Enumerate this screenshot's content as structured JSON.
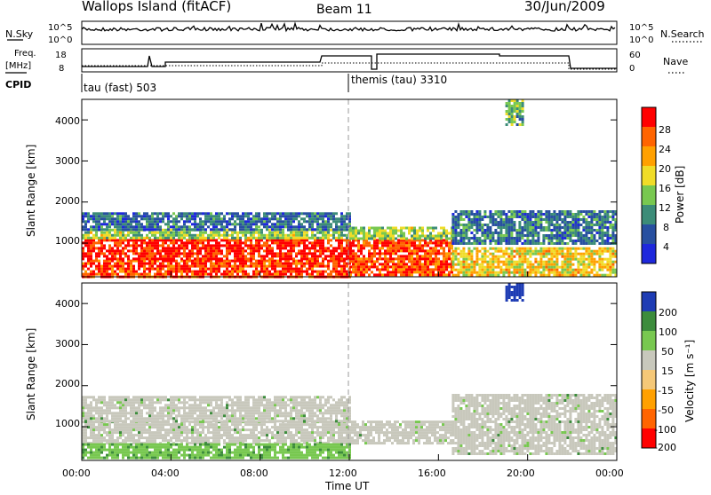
{
  "header": {
    "station": "Wallops Island (fitACF)",
    "beam": "Beam 11",
    "date": "30/Jun/2009"
  },
  "status_panels": {
    "nsky": {
      "left_label": "N.Sky",
      "ticks_left": [
        "10^5",
        "10^0"
      ],
      "right_label": "N.Search",
      "ticks_right": [
        "10^5",
        "10^0"
      ]
    },
    "freq": {
      "left_label_top": "Freq.",
      "left_label_bottom": "[MHz]",
      "ticks_left": [
        "18",
        "8"
      ],
      "right_label": "Nave",
      "ticks_right": [
        "60",
        "0"
      ]
    },
    "cpid": {
      "label": "CPID",
      "segments": [
        {
          "name": "tau (fast) 503",
          "start_h": 0
        },
        {
          "name": "themis (tau) 3310",
          "start_h": 12
        }
      ]
    }
  },
  "colors": {
    "power": [
      "#1e28dc",
      "#2850a0",
      "#3c8c78",
      "#78c850",
      "#f0dc28",
      "#ffa000",
      "#ff6400",
      "#ff0000"
    ],
    "velocity": [
      "#ff0000",
      "#ff6400",
      "#ffa000",
      "#f5c878",
      "#c8c8bc",
      "#78c850",
      "#3c8c3c",
      "#1e3cb4"
    ]
  },
  "chart_data": [
    {
      "type": "heatmap",
      "title": "",
      "xlabel": "",
      "ylabel": "Slant Range [km]",
      "xlim": [
        0,
        24
      ],
      "ylim": [
        180,
        4500
      ],
      "yticks": [
        "4000",
        "3000",
        "2000",
        "1000"
      ],
      "ytick_values": [
        4000,
        3000,
        2000,
        1000
      ],
      "colorbar": {
        "label": "Power [dB]",
        "ticks": [
          "28",
          "24",
          "20",
          "16",
          "12",
          "8",
          "4"
        ],
        "range": [
          0,
          30
        ]
      },
      "bands": [
        {
          "x": [
            0.0,
            12.0
          ],
          "y": [
            200,
            600
          ],
          "value": 26
        },
        {
          "x": [
            0.0,
            12.0
          ],
          "y": [
            600,
            1100
          ],
          "value": 28
        },
        {
          "x": [
            0.0,
            12.0
          ],
          "y": [
            1100,
            1350
          ],
          "value": 14
        },
        {
          "x": [
            0.0,
            12.0
          ],
          "y": [
            1350,
            1750
          ],
          "value": 7
        },
        {
          "x": [
            12.0,
            16.6
          ],
          "y": [
            250,
            1100
          ],
          "value": 26
        },
        {
          "x": [
            12.0,
            16.6
          ],
          "y": [
            1100,
            1400
          ],
          "value": 14
        },
        {
          "x": [
            16.6,
            24.0
          ],
          "y": [
            250,
            900
          ],
          "value": 18
        },
        {
          "x": [
            16.6,
            24.0
          ],
          "y": [
            1000,
            1800
          ],
          "value": 8
        },
        {
          "x": [
            19.0,
            19.8
          ],
          "y": [
            3900,
            4500
          ],
          "value": 12
        }
      ]
    },
    {
      "type": "heatmap",
      "title": "",
      "xlabel": "Time UT",
      "ylabel": "Slant Range [km]",
      "xlim": [
        0,
        24
      ],
      "ylim": [
        180,
        4500
      ],
      "xticks": [
        "00:00",
        "04:00",
        "08:00",
        "12:00",
        "16:00",
        "20:00",
        "00:00"
      ],
      "xtick_values": [
        0,
        4,
        8,
        12,
        16,
        20,
        24
      ],
      "yticks": [
        "4000",
        "3000",
        "2000",
        "1000"
      ],
      "ytick_values": [
        4000,
        3000,
        2000,
        1000
      ],
      "colorbar": {
        "label": "Velocity [m s⁻¹]",
        "ticks": [
          "200",
          "100",
          "50",
          "15",
          "-15",
          "-50",
          "-100",
          "-200"
        ]
      },
      "bands": [
        {
          "x": [
            0.0,
            16.6
          ],
          "y": [
            600,
            1150
          ],
          "value": 0
        },
        {
          "x": [
            0.0,
            12.0
          ],
          "y": [
            250,
            600
          ],
          "value": 40
        },
        {
          "x": [
            0.0,
            12.0
          ],
          "y": [
            1150,
            1750
          ],
          "value": 0
        },
        {
          "x": [
            16.6,
            24.0
          ],
          "y": [
            350,
            1800
          ],
          "value": 0
        },
        {
          "x": [
            19.0,
            19.8
          ],
          "y": [
            4100,
            4500
          ],
          "value": 120
        }
      ]
    }
  ]
}
